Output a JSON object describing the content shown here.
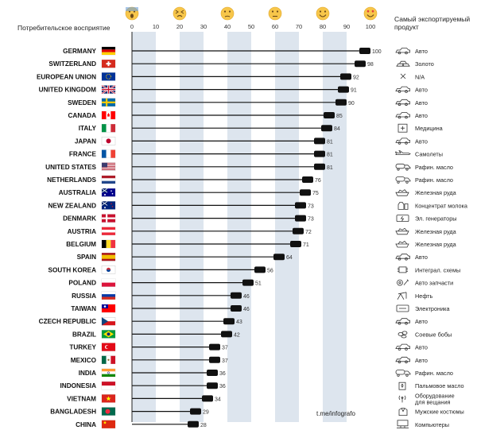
{
  "chart_data": {
    "type": "bar",
    "title": "Потребительское восприятие",
    "right_header": "Самый экспортируемый продукт",
    "x_ticks": [
      0,
      10,
      20,
      30,
      40,
      50,
      60,
      70,
      80,
      90,
      100
    ],
    "xlim": [
      0,
      100
    ],
    "emoji_scale": [
      "screaming-face",
      "confounded-face",
      "unamused-face",
      "neutral-face",
      "grinning-face",
      "heart-eyes-face"
    ],
    "rows": [
      {
        "country": "GERMANY",
        "value": 100,
        "product": "Авто",
        "flag": [
          "#000000",
          "#dd0000",
          "#ffce00"
        ],
        "flag_dir": "h",
        "icon": "car-icon"
      },
      {
        "country": "SWITZERLAND",
        "value": 98,
        "product": "Золото",
        "flag": [
          "#d52b1e"
        ],
        "flag_dir": "cross",
        "icon": "gold-icon"
      },
      {
        "country": "EUROPEAN UNION",
        "value": 92,
        "product": "N/A",
        "flag": [
          "#003399"
        ],
        "flag_dir": "eu",
        "icon": "none-icon"
      },
      {
        "country": "UNITED KINGDOM",
        "value": 91,
        "product": "Авто",
        "flag": [
          "#012169"
        ],
        "flag_dir": "uk",
        "icon": "car-icon"
      },
      {
        "country": "SWEDEN",
        "value": 90,
        "product": "Авто",
        "flag": [
          "#006aa7"
        ],
        "flag_dir": "nordic-yellow",
        "icon": "car-icon"
      },
      {
        "country": "CANADA",
        "value": 85,
        "product": "Авто",
        "flag": [
          "#ff0000",
          "#ffffff",
          "#ff0000"
        ],
        "flag_dir": "v",
        "icon": "car-icon"
      },
      {
        "country": "ITALY",
        "value": 84,
        "product": "Медицина",
        "flag": [
          "#009246",
          "#ffffff",
          "#ce2b37"
        ],
        "flag_dir": "v",
        "icon": "medicine-icon"
      },
      {
        "country": "JAPAN",
        "value": 81,
        "product": "Авто",
        "flag": [
          "#ffffff"
        ],
        "flag_dir": "jp",
        "icon": "car-icon"
      },
      {
        "country": "FRANCE",
        "value": 81,
        "product": "Самолеты",
        "flag": [
          "#0055a4",
          "#ffffff",
          "#ef4135"
        ],
        "flag_dir": "v",
        "icon": "plane-icon"
      },
      {
        "country": "UNITED STATES",
        "value": 81,
        "product": "Рафин. масло",
        "flag": [
          "#b22234",
          "#ffffff",
          "#b22234",
          "#ffffff",
          "#b22234"
        ],
        "flag_dir": "us",
        "icon": "oil-truck-icon"
      },
      {
        "country": "NETHERLANDS",
        "value": 76,
        "product": "Рафин. масло",
        "flag": [
          "#ae1c28",
          "#ffffff",
          "#21468b"
        ],
        "flag_dir": "h",
        "icon": "oil-truck-icon"
      },
      {
        "country": "AUSTRALIA",
        "value": 75,
        "product": "Железная руда",
        "flag": [
          "#00008b"
        ],
        "flag_dir": "au",
        "icon": "ore-icon"
      },
      {
        "country": "NEW ZEALAND",
        "value": 73,
        "product": "Концентрат молока",
        "flag": [
          "#00247d"
        ],
        "flag_dir": "au",
        "icon": "milk-icon"
      },
      {
        "country": "DENMARK",
        "value": 73,
        "product": "Эл. генераторы",
        "flag": [
          "#c8102e"
        ],
        "flag_dir": "nordic-white",
        "icon": "generator-icon"
      },
      {
        "country": "AUSTRIA",
        "value": 72,
        "product": "Железная руда",
        "flag": [
          "#ed2939",
          "#ffffff",
          "#ed2939"
        ],
        "flag_dir": "h",
        "icon": "ore-icon"
      },
      {
        "country": "BELGIUM",
        "value": 71,
        "product": "Железная руда",
        "flag": [
          "#000000",
          "#fdda24",
          "#ef3340"
        ],
        "flag_dir": "v",
        "icon": "ore-icon"
      },
      {
        "country": "SPAIN",
        "value": 64,
        "product": "Авто",
        "flag": [
          "#aa151b",
          "#f1bf00",
          "#f1bf00",
          "#aa151b"
        ],
        "flag_dir": "es",
        "icon": "car-icon"
      },
      {
        "country": "SOUTH KOREA",
        "value": 56,
        "product": "Интеграл. схемы",
        "flag": [
          "#ffffff"
        ],
        "flag_dir": "kr",
        "icon": "chip-icon"
      },
      {
        "country": "POLAND",
        "value": 51,
        "product": "Авто запчасти",
        "flag": [
          "#ffffff",
          "#dc143c"
        ],
        "flag_dir": "h",
        "icon": "car-parts-icon"
      },
      {
        "country": "RUSSIA",
        "value": 46,
        "product": "Нефть",
        "flag": [
          "#ffffff",
          "#0039a6",
          "#d52b1e"
        ],
        "flag_dir": "h",
        "icon": "oil-pump-icon"
      },
      {
        "country": "TAIWAN",
        "value": 46,
        "product": "Электроника",
        "flag": [
          "#fe0000"
        ],
        "flag_dir": "tw",
        "icon": "electronics-icon"
      },
      {
        "country": "CZECH REPUBLIC",
        "value": 43,
        "product": "Авто",
        "flag": [
          "#ffffff",
          "#d7141a"
        ],
        "flag_dir": "cz",
        "icon": "car-icon"
      },
      {
        "country": "BRAZIL",
        "value": 42,
        "product": "Соевые бобы",
        "flag": [
          "#009c3b"
        ],
        "flag_dir": "br",
        "icon": "soy-icon"
      },
      {
        "country": "TURKEY",
        "value": 37,
        "product": "Авто",
        "flag": [
          "#e30a17"
        ],
        "flag_dir": "tr",
        "icon": "car-icon"
      },
      {
        "country": "MEXICO",
        "value": 37,
        "product": "Авто",
        "flag": [
          "#006847",
          "#ffffff",
          "#ce1126"
        ],
        "flag_dir": "v",
        "icon": "car-icon"
      },
      {
        "country": "INDIA",
        "value": 36,
        "product": "Рафин. масло",
        "flag": [
          "#ff9933",
          "#ffffff",
          "#138808"
        ],
        "flag_dir": "h",
        "icon": "oil-truck-icon"
      },
      {
        "country": "INDONESIA",
        "value": 36,
        "product": "Пальмовое масло",
        "flag": [
          "#ce1126",
          "#ffffff"
        ],
        "flag_dir": "h",
        "icon": "palm-oil-icon"
      },
      {
        "country": "VIETNAM",
        "value": 34,
        "product": "Оборудование для вещания",
        "flag": [
          "#da251d"
        ],
        "flag_dir": "vn",
        "icon": "broadcast-icon"
      },
      {
        "country": "BANGLADESH",
        "value": 29,
        "product": "Мужские костюмы",
        "flag": [
          "#006a4e"
        ],
        "flag_dir": "bd",
        "icon": "suit-icon"
      },
      {
        "country": "CHINA",
        "value": 28,
        "product": "Компьютеры",
        "flag": [
          "#de2910"
        ],
        "flag_dir": "cn",
        "icon": "computer-icon"
      }
    ],
    "colors": {
      "band": "#dde5ee",
      "bar": "#111111",
      "marker": "#111111"
    }
  },
  "footer": "t.me/infografo"
}
